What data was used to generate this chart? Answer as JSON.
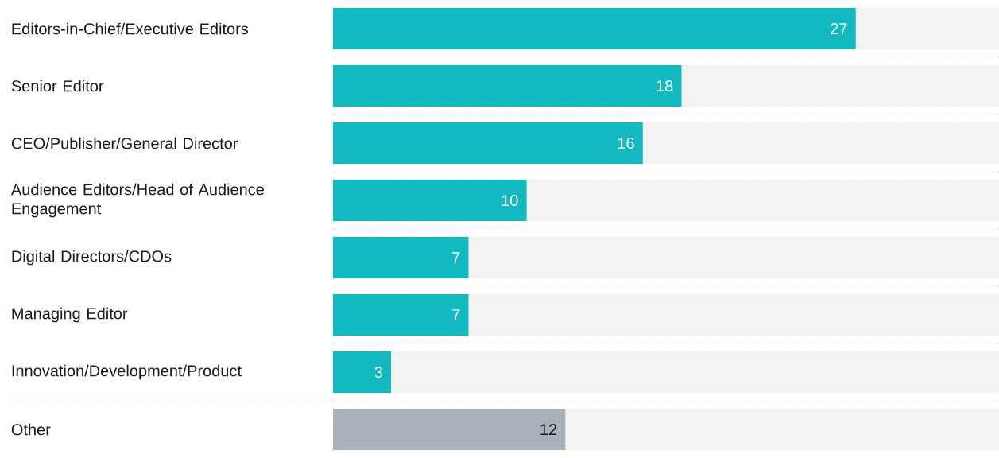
{
  "chart_data": {
    "type": "bar",
    "orientation": "horizontal",
    "categories": [
      "Editors-in-Chief/Executive Editors",
      "Senior Editor",
      "CEO/Publisher/General Director",
      "Audience Editors/Head of Audience Engagement",
      "Digital Directors/CDOs",
      "Managing Editor",
      "Innovation/Development/Product",
      "Other"
    ],
    "values": [
      27,
      18,
      16,
      10,
      7,
      7,
      3,
      12
    ],
    "colors": [
      "#12b9c1",
      "#12b9c1",
      "#12b9c1",
      "#12b9c1",
      "#12b9c1",
      "#12b9c1",
      "#12b9c1",
      "#a9b2bb"
    ],
    "xlim": [
      0,
      34.4
    ],
    "grid": "y",
    "data_labels": true,
    "tick_labels": "y"
  }
}
